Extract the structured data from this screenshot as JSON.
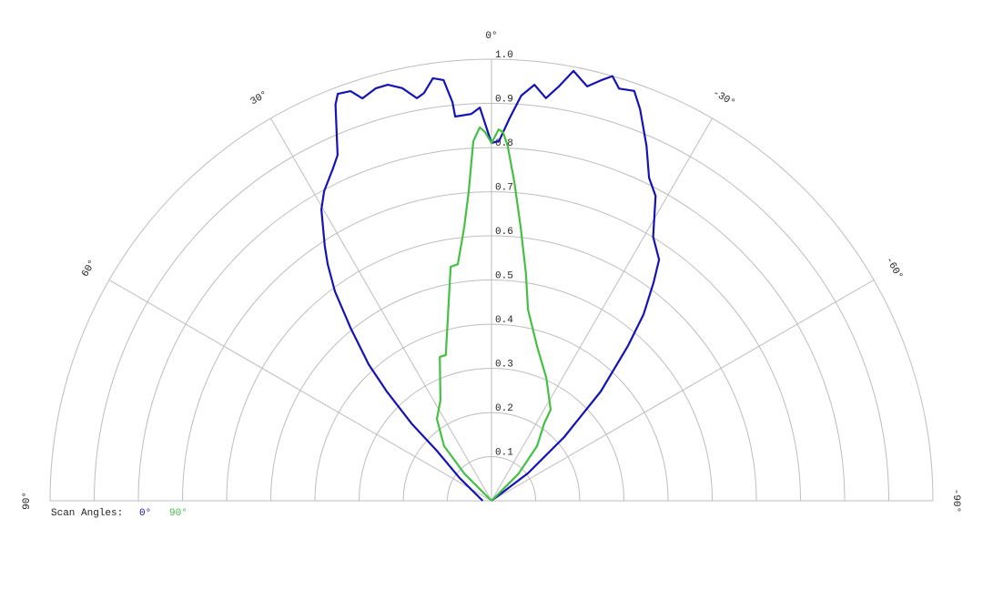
{
  "chart_data": {
    "type": "polar",
    "rlim": [
      0,
      1
    ],
    "rticks": [
      0.1,
      0.2,
      0.3,
      0.4,
      0.5,
      0.6,
      0.7,
      0.8,
      0.9,
      {
        "value": 1,
        "label": "1.0"
      }
    ],
    "thetalim": [
      -90,
      90
    ],
    "thetaticks": [
      {
        "value": 0,
        "label": "0°"
      },
      {
        "value": 30,
        "label": "30°"
      },
      {
        "value": 60,
        "label": "60°"
      },
      {
        "value": 90,
        "label": "90°"
      },
      {
        "value": -30,
        "label": "-30°"
      },
      {
        "value": -60,
        "label": "-60°"
      },
      {
        "value": -90,
        "label": "-90°"
      }
    ],
    "theta_direction": "counterclockwise-from-top",
    "grid": true,
    "legend_title": "Scan Angles:",
    "legend": "bottom-left",
    "series": [
      {
        "name": "0°",
        "color": "#1414b4",
        "x": [
          -90,
          -53,
          -48.8,
          -45,
          -41.4,
          -39.2,
          -36.6,
          -34.8,
          -31.5,
          -28.3,
          -26,
          -23.6,
          -20.8,
          -19.2,
          -17.2,
          -15.9,
          -14.6,
          -13,
          -10.8,
          -9.2,
          -7.7,
          -5.9,
          -4.2,
          -2.7,
          -1.2,
          0,
          1.7,
          3,
          5.4,
          5.6,
          6.5,
          7.9,
          9.4,
          10.5,
          12.2,
          14,
          15.7,
          17.8,
          19,
          20.7,
          21.5,
          24,
          25.5,
          28.4,
          30.3,
          33.2,
          34.7,
          36.8,
          39.2,
          42,
          43.8,
          46,
          47.5,
          54.5,
          90
        ],
        "values": [
          0,
          0.103,
          0.219,
          0.35,
          0.467,
          0.545,
          0.616,
          0.665,
          0.701,
          0.784,
          0.814,
          0.877,
          0.948,
          0.983,
          0.977,
          1.0,
          0.984,
          0.963,
          0.991,
          0.95,
          0.92,
          0.947,
          0.92,
          0.867,
          0.815,
          0.81,
          0.891,
          0.877,
          0.874,
          0.907,
          0.959,
          0.966,
          0.936,
          0.927,
          0.956,
          0.971,
          0.97,
          0.957,
          0.981,
          0.985,
          0.964,
          0.857,
          0.834,
          0.797,
          0.764,
          0.69,
          0.652,
          0.592,
          0.505,
          0.416,
          0.343,
          0.252,
          0.168,
          0.089,
          0.02
        ]
      },
      {
        "name": "90°",
        "color": "#44c044",
        "x": [
          -90,
          -45,
          -39.8,
          -34.3,
          -33,
          -24,
          -16.4,
          -10.8,
          -8.6,
          -6.1,
          -4.1,
          -2.6,
          -1.8,
          -1.1,
          0,
          1,
          1.8,
          2.9,
          4.2,
          5.7,
          8.1,
          9.9,
          13.5,
          17.4,
          19.8,
          27,
          33.7,
          40.9,
          45,
          90
        ],
        "values": [
          0,
          0.087,
          0.161,
          0.212,
          0.246,
          0.305,
          0.365,
          0.441,
          0.521,
          0.622,
          0.724,
          0.805,
          0.835,
          0.841,
          0.81,
          0.835,
          0.846,
          0.815,
          0.703,
          0.622,
          0.541,
          0.538,
          0.424,
          0.346,
          0.346,
          0.255,
          0.223,
          0.164,
          0.087,
          0
        ]
      }
    ]
  }
}
